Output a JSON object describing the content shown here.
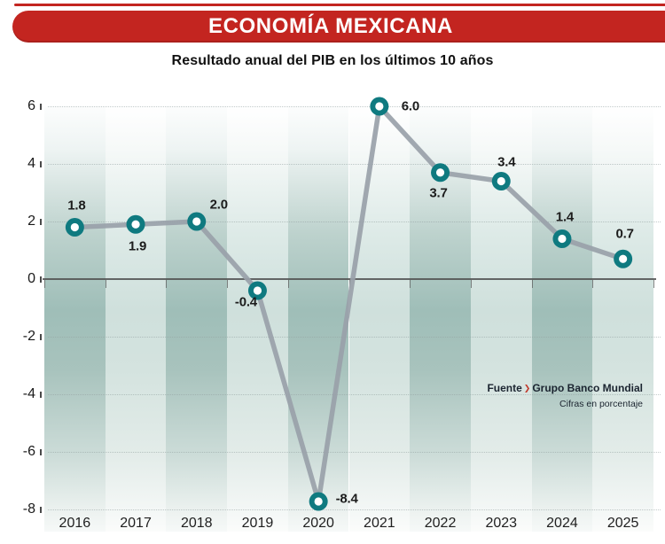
{
  "header": {
    "title": "ECONOMÍA MEXICANA",
    "subtitle": "Resultado anual del PIB en los últimos 10 años"
  },
  "source": {
    "label": "Fuente",
    "separator_icon": "chevron-right-icon",
    "name": "Grupo Banco Mundial",
    "note": "Cifras en porcentaje"
  },
  "colors": {
    "banner_red": "#c32520",
    "marker_teal": "#0f7a80",
    "line_gray": "#99a1a9",
    "band_dark_mid": "#9fbeb8",
    "band_light_mid": "#cfe0dc",
    "zero_line": "#4f4f4f",
    "text_dark": "#1a1a1a",
    "source_text": "#1b2430",
    "chevron_red": "#c0392b"
  },
  "chart_data": {
    "type": "line",
    "title": "ECONOMÍA MEXICANA",
    "subtitle": "Resultado anual del PIB en los últimos 10 años",
    "unit": "percent",
    "categories": [
      "2016",
      "2017",
      "2018",
      "2019",
      "2020",
      "2021",
      "2022",
      "2023",
      "2024",
      "2025"
    ],
    "values": [
      1.8,
      1.9,
      2.0,
      -0.4,
      -8.4,
      6.0,
      3.7,
      3.4,
      1.4,
      0.7
    ],
    "point_labels": [
      "1.8",
      "1.9",
      "2.0",
      "-0.4",
      "-8.4",
      "6.0",
      "3.7",
      "3.4",
      "1.4",
      "0.7"
    ],
    "y_ticks": [
      6,
      4,
      2,
      0,
      -2,
      -4,
      -6,
      -8
    ],
    "ylim": [
      -8.8,
      6.6
    ],
    "grid": "dotted-horizontal",
    "zero_axis": "solid",
    "marker": "ring",
    "legend": "none",
    "background": "alternating-vertical-gradient-bands"
  }
}
